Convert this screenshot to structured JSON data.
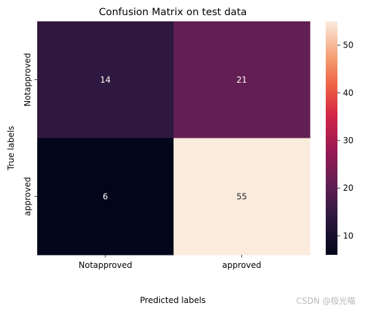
{
  "chart_data": {
    "type": "heatmap",
    "title": "Confusion Matrix on test data",
    "xlabel": "Predicted labels",
    "ylabel": "True labels",
    "x_categories": [
      "Notapproved",
      "approved"
    ],
    "y_categories": [
      "Notapproved",
      "approved"
    ],
    "values": [
      [
        14,
        21
      ],
      [
        6,
        55
      ]
    ],
    "colorbar": {
      "min": 6,
      "max": 55,
      "ticks": [
        10,
        20,
        30,
        40,
        50
      ],
      "colormap": "rocket"
    }
  },
  "watermark": "CSDN @极光喵"
}
